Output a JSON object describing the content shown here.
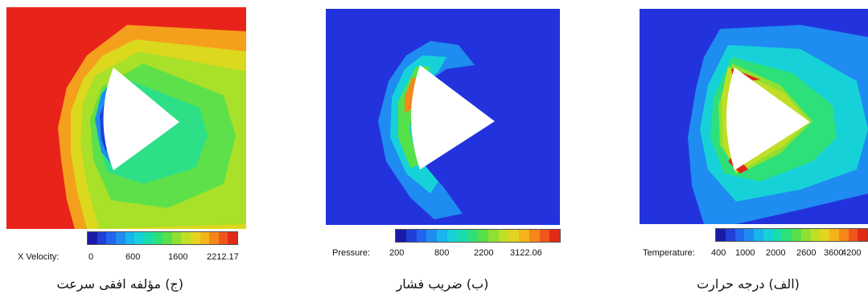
{
  "panels": [
    {
      "id": "c",
      "caption": "(ج) مؤلفه افقی سرعت",
      "legend_title": "X Velocity:",
      "legend_ticks": [
        "0",
        "600",
        "1600",
        "2212.17"
      ]
    },
    {
      "id": "b",
      "caption": "(ب) ضریب فشار",
      "legend_title": "Pressure:",
      "legend_ticks": [
        "200",
        "800",
        "2200",
        "3122.06"
      ]
    },
    {
      "id": "a",
      "caption": "(الف) درجه حرارت",
      "legend_title": "Temperature:",
      "legend_ticks": [
        "400",
        "1000",
        "2000",
        "2600",
        "3600",
        "4200"
      ]
    }
  ],
  "colors": {
    "jet": [
      "#1a1aa8",
      "#1f3fd6",
      "#2266ee",
      "#1e8cf0",
      "#18b4ee",
      "#16d2d8",
      "#19dcae",
      "#2ee07a",
      "#56e04a",
      "#8ee031",
      "#c0de26",
      "#e2d420",
      "#f4b31a",
      "#f5861a",
      "#f0561a",
      "#e02a16"
    ]
  }
}
